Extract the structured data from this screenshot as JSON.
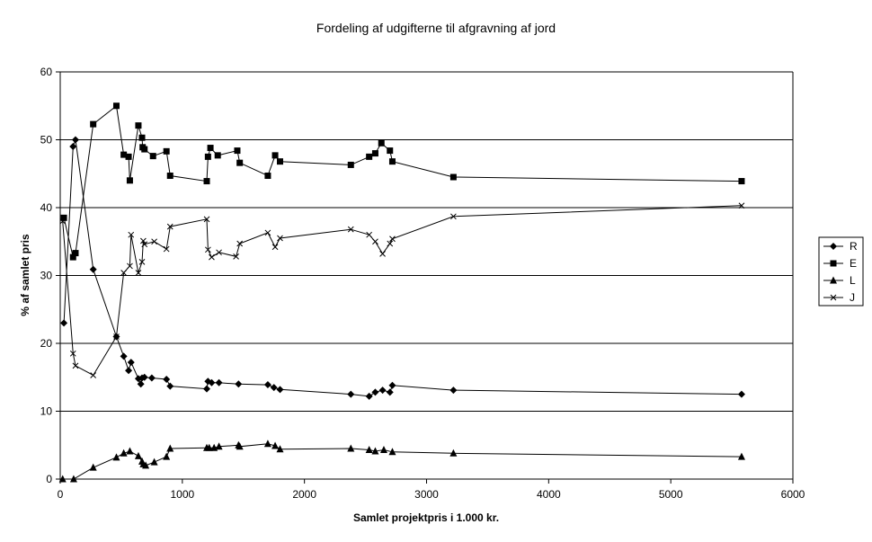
{
  "chart_data": {
    "type": "line",
    "title": "Fordeling af udgifterne til afgravning af jord",
    "xlabel": "Samlet projektpris i 1.000 kr.",
    "ylabel": "% af samlet pris",
    "xlim": [
      0,
      6000
    ],
    "ylim": [
      0,
      60
    ],
    "xticks": [
      "0",
      "1000",
      "2000",
      "3000",
      "4000",
      "5000",
      "6000"
    ],
    "yticks": [
      "0",
      "10",
      "20",
      "30",
      "40",
      "50",
      "60"
    ],
    "grid": "horizontal",
    "legend_position": "right",
    "line_color": "#000000",
    "series": [
      {
        "name": "R",
        "marker": "diamond",
        "points": [
          [
            30,
            23.0
          ],
          [
            105,
            49
          ],
          [
            125,
            50
          ],
          [
            270,
            30.9
          ],
          [
            460,
            21
          ],
          [
            520,
            18.1
          ],
          [
            560,
            16.0
          ],
          [
            580,
            17.2
          ],
          [
            640,
            14.8
          ],
          [
            660,
            14.0
          ],
          [
            670,
            14.9
          ],
          [
            690,
            15.0
          ],
          [
            750,
            14.9
          ],
          [
            870,
            14.7
          ],
          [
            900,
            13.7
          ],
          [
            1200,
            13.3
          ],
          [
            1210,
            14.4
          ],
          [
            1240,
            14.2
          ],
          [
            1300,
            14.2
          ],
          [
            1460,
            14.0
          ],
          [
            1700,
            13.9
          ],
          [
            1750,
            13.5
          ],
          [
            1800,
            13.2
          ],
          [
            2380,
            12.5
          ],
          [
            2530,
            12.2
          ],
          [
            2580,
            12.8
          ],
          [
            2640,
            13.1
          ],
          [
            2700,
            12.8
          ],
          [
            2720,
            13.8
          ],
          [
            3220,
            13.1
          ],
          [
            5580,
            12.5
          ]
        ]
      },
      {
        "name": "E",
        "marker": "square",
        "points": [
          [
            30,
            38.5
          ],
          [
            105,
            32.7
          ],
          [
            125,
            33.3
          ],
          [
            270,
            52.3
          ],
          [
            460,
            55
          ],
          [
            520,
            47.8
          ],
          [
            560,
            47.5
          ],
          [
            570,
            44.0
          ],
          [
            640,
            52.1
          ],
          [
            670,
            50.3
          ],
          [
            675,
            48.9
          ],
          [
            690,
            48.6
          ],
          [
            760,
            47.6
          ],
          [
            870,
            48.3
          ],
          [
            900,
            44.7
          ],
          [
            1200,
            43.9
          ],
          [
            1210,
            47.5
          ],
          [
            1230,
            48.8
          ],
          [
            1290,
            47.7
          ],
          [
            1450,
            48.4
          ],
          [
            1470,
            46.6
          ],
          [
            1700,
            44.7
          ],
          [
            1760,
            47.7
          ],
          [
            1800,
            46.8
          ],
          [
            2380,
            46.3
          ],
          [
            2530,
            47.5
          ],
          [
            2580,
            48.0
          ],
          [
            2630,
            49.5
          ],
          [
            2700,
            48.4
          ],
          [
            2720,
            46.8
          ],
          [
            3220,
            44.5
          ],
          [
            5580,
            43.9
          ]
        ]
      },
      {
        "name": "L",
        "marker": "triangle",
        "points": [
          [
            20,
            0
          ],
          [
            110,
            0
          ],
          [
            270,
            1.7
          ],
          [
            460,
            3.2
          ],
          [
            520,
            3.8
          ],
          [
            570,
            4.1
          ],
          [
            640,
            3.4
          ],
          [
            670,
            2.6
          ],
          [
            680,
            2.2
          ],
          [
            700,
            2.0
          ],
          [
            770,
            2.5
          ],
          [
            870,
            3.3
          ],
          [
            900,
            4.5
          ],
          [
            1200,
            4.6
          ],
          [
            1220,
            4.6
          ],
          [
            1260,
            4.6
          ],
          [
            1300,
            4.8
          ],
          [
            1460,
            5.0
          ],
          [
            1470,
            4.8
          ],
          [
            1700,
            5.2
          ],
          [
            1760,
            4.9
          ],
          [
            1800,
            4.4
          ],
          [
            2380,
            4.5
          ],
          [
            2530,
            4.3
          ],
          [
            2580,
            4.1
          ],
          [
            2650,
            4.3
          ],
          [
            2720,
            4.0
          ],
          [
            3220,
            3.8
          ],
          [
            5580,
            3.3
          ]
        ]
      },
      {
        "name": "J",
        "marker": "x",
        "points": [
          [
            20,
            38
          ],
          [
            105,
            18.5
          ],
          [
            125,
            16.7
          ],
          [
            270,
            15.3
          ],
          [
            460,
            21
          ],
          [
            520,
            30.4
          ],
          [
            570,
            31.4
          ],
          [
            580,
            36
          ],
          [
            640,
            30.4
          ],
          [
            670,
            32.0
          ],
          [
            680,
            35.1
          ],
          [
            690,
            34.6
          ],
          [
            770,
            35.0
          ],
          [
            870,
            33.9
          ],
          [
            900,
            37.2
          ],
          [
            1200,
            38.3
          ],
          [
            1210,
            33.8
          ],
          [
            1240,
            32.7
          ],
          [
            1300,
            33.4
          ],
          [
            1440,
            32.8
          ],
          [
            1470,
            34.7
          ],
          [
            1700,
            36.3
          ],
          [
            1760,
            34.2
          ],
          [
            1800,
            35.5
          ],
          [
            2380,
            36.8
          ],
          [
            2530,
            36.0
          ],
          [
            2580,
            35.0
          ],
          [
            2640,
            33.2
          ],
          [
            2700,
            34.7
          ],
          [
            2720,
            35.4
          ],
          [
            3220,
            38.7
          ],
          [
            5580,
            40.3
          ]
        ]
      }
    ]
  }
}
